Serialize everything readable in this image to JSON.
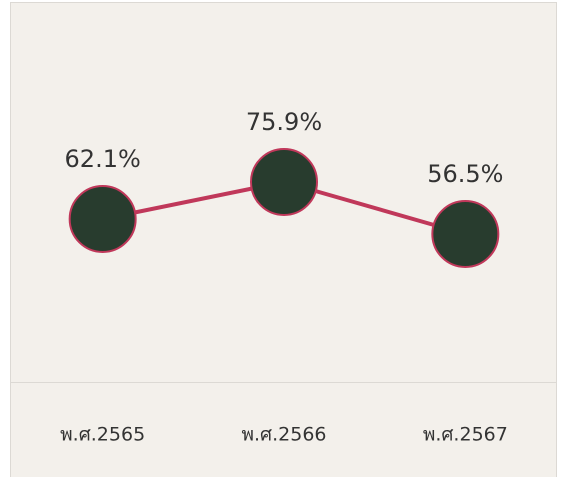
{
  "chart_data": {
    "type": "line",
    "categories": [
      "พ.ศ.2565",
      "พ.ศ.2566",
      "พ.ศ.2567"
    ],
    "values": [
      62.1,
      75.9,
      56.5
    ],
    "value_labels": [
      "62.1%",
      "75.9%",
      "56.5%"
    ],
    "color": "#c0385a",
    "marker_color": "#283c2e"
  }
}
